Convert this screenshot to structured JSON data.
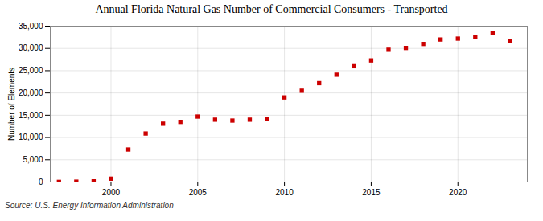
{
  "chart_data": {
    "type": "scatter",
    "title": "Annual Florida Natural Gas Number of Commercial Consumers - Transported",
    "ylabel": "Number of Elements",
    "source": "Source: U.S. Energy Information Administration",
    "x": [
      1997,
      1998,
      1999,
      2000,
      2001,
      2002,
      2003,
      2004,
      2005,
      2006,
      2007,
      2008,
      2009,
      2010,
      2011,
      2012,
      2013,
      2014,
      2015,
      2016,
      2017,
      2018,
      2019,
      2020,
      2021,
      2022,
      2023
    ],
    "values": [
      30,
      80,
      150,
      750,
      7300,
      10900,
      13100,
      13500,
      14700,
      14000,
      13800,
      14000,
      14100,
      19000,
      20500,
      22200,
      24100,
      26000,
      27300,
      29700,
      30100,
      31000,
      32000,
      32200,
      32600,
      33500,
      31700
    ],
    "color": "#cc0000",
    "marker": "square",
    "xlim": [
      1996.5,
      2024
    ],
    "xticks": [
      2000,
      2005,
      2010,
      2015,
      2020
    ],
    "ylim": [
      0,
      35000
    ],
    "yticks": [
      0,
      {
        "value": 5000,
        "label": "5,000"
      },
      {
        "value": 10000,
        "label": "10,000"
      },
      {
        "value": 15000,
        "label": "15,000"
      },
      {
        "value": 20000,
        "label": "20,000"
      },
      {
        "value": 25000,
        "label": "25,000"
      },
      {
        "value": 30000,
        "label": "30,000"
      },
      {
        "value": 35000,
        "label": "35,000"
      }
    ],
    "grid": true
  }
}
